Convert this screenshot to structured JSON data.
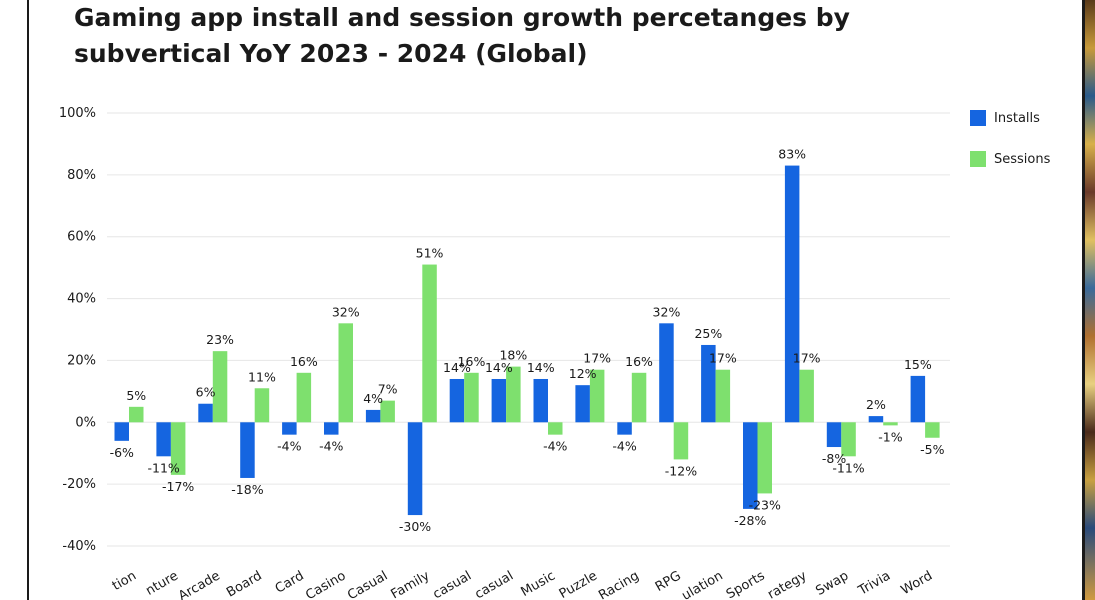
{
  "chart_data": {
    "type": "bar",
    "title": "Gaming app install and session growth percetanges by subvertical YoY 2023 - 2024 (Global)",
    "title_lines": [
      "Gaming app install and session growth percetanges by",
      "subvertical YoY 2023 - 2024 (Global)"
    ],
    "categories": [
      "Action",
      "Adventure",
      "Arcade",
      "Board",
      "Card",
      "Casino",
      "Casual",
      "Family",
      "Hybridcasual",
      "Hypercasual",
      "Music",
      "Puzzle",
      "Racing",
      "RPG",
      "Simulation",
      "Sports",
      "Strategy",
      "Swap",
      "Trivia",
      "Word"
    ],
    "category_labels_visible": [
      "tion",
      "nture",
      "Arcade",
      "Board",
      "Card",
      "Casino",
      "Casual",
      "Family",
      "casual",
      "casual",
      "Music",
      "Puzzle",
      "Racing",
      "RPG",
      "ulation",
      "Sports",
      "rategy",
      "Swap",
      "Trivia",
      "Word"
    ],
    "series": [
      {
        "name": "Installs",
        "color": "#1565e0",
        "values": [
          -6,
          -11,
          6,
          -18,
          -4,
          -4,
          4,
          -30,
          14,
          14,
          14,
          12,
          -4,
          32,
          25,
          -28,
          83,
          -8,
          2,
          15
        ]
      },
      {
        "name": "Sessions",
        "color": "#7ee06e",
        "values": [
          5,
          -17,
          23,
          11,
          16,
          32,
          7,
          51,
          16,
          18,
          -4,
          17,
          16,
          -12,
          17,
          -23,
          17,
          -11,
          -1,
          -5
        ]
      }
    ],
    "data_labels": {
      "Installs": [
        "-6%",
        "-11%",
        "6%",
        "-18%",
        "-4%",
        "-4%",
        "4%",
        "-30%",
        "14%",
        "14%",
        "14%",
        "12%",
        "-4%",
        "32%",
        "25%",
        "-28%",
        "83%",
        "-8%",
        "2%",
        "15%"
      ],
      "Sessions": [
        "5%",
        "-17%",
        "23%",
        "11%",
        "16%",
        "32%",
        "7%",
        "51%",
        "16%",
        "18%",
        "-4%",
        "17%",
        "16%",
        "-12%",
        "17%",
        "-23%",
        "17%",
        "-11%",
        "-1%",
        "-5%"
      ]
    },
    "yticks": [
      100,
      80,
      60,
      40,
      20,
      0,
      -20,
      -40
    ],
    "ytick_labels": [
      "100%",
      "80%",
      "60%",
      "40%",
      "20%",
      "0%",
      "-20%",
      "-40%"
    ],
    "ylim": [
      -40,
      100
    ],
    "xlabel": "",
    "ylabel": "",
    "grid": true,
    "legend": "right"
  }
}
